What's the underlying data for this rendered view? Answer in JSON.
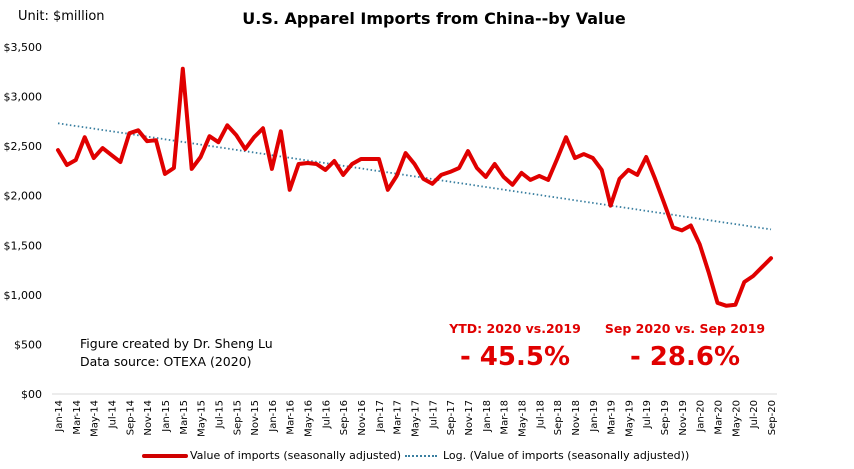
{
  "chart_data": {
    "type": "line",
    "title": "U.S. Apparel Imports from China--by Value",
    "unit_label": "Unit: $million",
    "xlabel": "",
    "ylabel": "",
    "ylim": [
      0,
      3500
    ],
    "yticks": [
      0,
      500,
      1000,
      1500,
      2000,
      2500,
      3000,
      3500
    ],
    "ytick_labels": [
      "$00",
      "$500",
      "$1,000",
      "$1,500",
      "$2,000",
      "$2,500",
      "$3,000",
      "$3,500"
    ],
    "grid": false,
    "legend_position": "bottom",
    "x": [
      "Jan-14",
      "Feb-14",
      "Mar-14",
      "Apr-14",
      "May-14",
      "Jun-14",
      "Jul-14",
      "Aug-14",
      "Sep-14",
      "Oct-14",
      "Nov-14",
      "Dec-14",
      "Jan-15",
      "Feb-15",
      "Mar-15",
      "Apr-15",
      "May-15",
      "Jun-15",
      "Jul-15",
      "Aug-15",
      "Sep-15",
      "Oct-15",
      "Nov-15",
      "Dec-15",
      "Jan-16",
      "Feb-16",
      "Mar-16",
      "Apr-16",
      "May-16",
      "Jun-16",
      "Jul-16",
      "Aug-16",
      "Sep-16",
      "Oct-16",
      "Nov-16",
      "Dec-16",
      "Jan-17",
      "Feb-17",
      "Mar-17",
      "Apr-17",
      "May-17",
      "Jun-17",
      "Jul-17",
      "Aug-17",
      "Sep-17",
      "Oct-17",
      "Nov-17",
      "Dec-17",
      "Jan-18",
      "Feb-18",
      "Mar-18",
      "Apr-18",
      "May-18",
      "Jun-18",
      "Jul-18",
      "Aug-18",
      "Sep-18",
      "Oct-18",
      "Nov-18",
      "Dec-18",
      "Jan-19",
      "Feb-19",
      "Mar-19",
      "Apr-19",
      "May-19",
      "Jun-19",
      "Jul-19",
      "Aug-19",
      "Sep-19",
      "Oct-19",
      "Nov-19",
      "Dec-19",
      "Jan-20",
      "Feb-20",
      "Mar-20",
      "Apr-20",
      "May-20",
      "Jun-20",
      "Jul-20",
      "Aug-20",
      "Sep-20"
    ],
    "xtick_labels": [
      "Jan-14",
      "Mar-14",
      "May-14",
      "Jul-14",
      "Sep-14",
      "Nov-14",
      "Jan-15",
      "Mar-15",
      "May-15",
      "Jul-15",
      "Sep-15",
      "Nov-15",
      "Jan-16",
      "Mar-16",
      "May-16",
      "Jul-16",
      "Sep-16",
      "Nov-16",
      "Jan-17",
      "Mar-17",
      "May-17",
      "Jul-17",
      "Sep-17",
      "Nov-17",
      "Jan-18",
      "Mar-18",
      "May-18",
      "Jul-18",
      "Sep-18",
      "Nov-18",
      "Jan-19",
      "Mar-19",
      "May-19",
      "Jul-19",
      "Sep-19",
      "Nov-19",
      "Jan-20",
      "Mar-20",
      "May-20",
      "Jul-20",
      "Sep-20"
    ],
    "series": [
      {
        "name": "Value of imports (seasonally adjusted)",
        "color": "#e00000",
        "style": "solid",
        "values": [
          2460,
          2310,
          2360,
          2590,
          2380,
          2480,
          2410,
          2340,
          2630,
          2660,
          2550,
          2560,
          2220,
          2280,
          3280,
          2270,
          2390,
          2600,
          2540,
          2710,
          2610,
          2470,
          2590,
          2680,
          2270,
          2650,
          2060,
          2320,
          2330,
          2320,
          2260,
          2350,
          2210,
          2320,
          2370,
          2370,
          2370,
          2060,
          2200,
          2430,
          2320,
          2170,
          2120,
          2210,
          2240,
          2280,
          2450,
          2280,
          2190,
          2320,
          2190,
          2110,
          2230,
          2160,
          2200,
          2160,
          2370,
          2590,
          2380,
          2420,
          2380,
          2260,
          1900,
          2170,
          2260,
          2210,
          2390,
          2170,
          1930,
          1680,
          1650,
          1700,
          1510,
          1230,
          920,
          890,
          900,
          1130,
          1190,
          1280,
          1370
        ]
      },
      {
        "name": "Log. (Value of imports (seasonally adjusted))",
        "color": "#3a7fa0",
        "style": "dotted",
        "start_value": 2730,
        "end_value": 1660
      }
    ],
    "annotations": [
      {
        "label": "YTD: 2020  vs.2019",
        "value": "- 45.5%"
      },
      {
        "label": "Sep 2020 vs. Sep 2019",
        "value": "- 28.6%"
      }
    ],
    "credits": [
      "Figure created by Dr. Sheng Lu",
      "Data source: OTEXA (2020)"
    ]
  }
}
